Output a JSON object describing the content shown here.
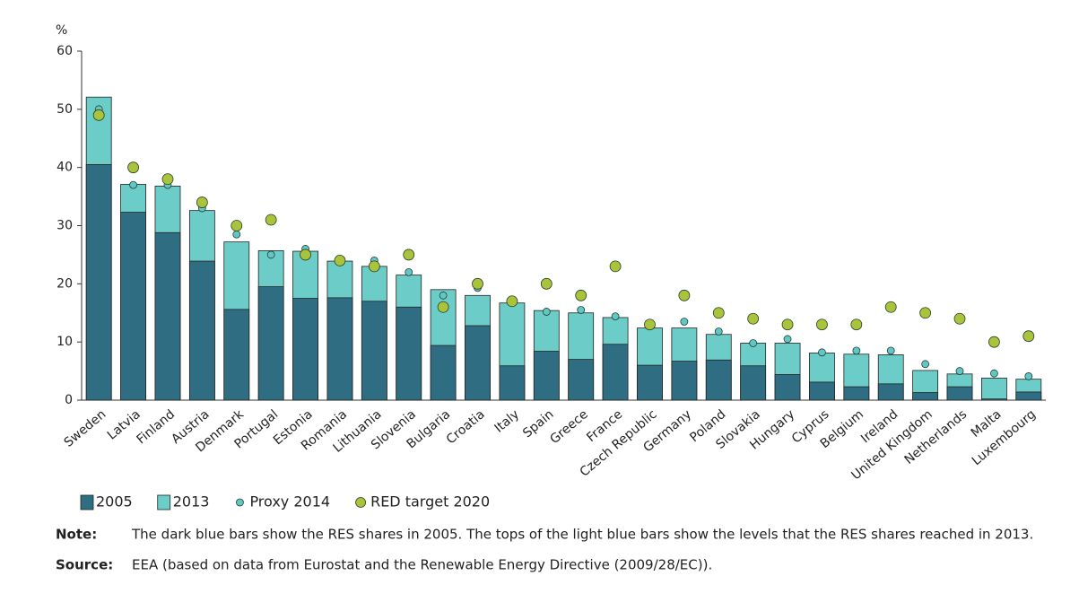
{
  "chart_data": {
    "type": "bar",
    "y_label": "%",
    "categories": [
      "Sweden",
      "Latvia",
      "Finland",
      "Austria",
      "Denmark",
      "Portugal",
      "Estonia",
      "Romania",
      "Lithuania",
      "Slovenia",
      "Bulgaria",
      "Croatia",
      "Italy",
      "Spain",
      "Greece",
      "France",
      "Czech Republic",
      "Germany",
      "Poland",
      "Slovakia",
      "Hungary",
      "Cyprus",
      "Belgium",
      "Ireland",
      "United Kingdom",
      "Netherlands",
      "Malta",
      "Luxembourg"
    ],
    "series": [
      {
        "name": "2013",
        "mark": "bar",
        "color": "#6ccdc8",
        "values": [
          52.1,
          37.1,
          36.8,
          32.6,
          27.2,
          25.7,
          25.6,
          23.9,
          23.0,
          21.5,
          19.0,
          18.0,
          16.7,
          15.4,
          15.0,
          14.2,
          12.4,
          12.4,
          11.3,
          9.8,
          9.8,
          8.1,
          7.9,
          7.8,
          5.1,
          4.5,
          3.8,
          3.6
        ]
      },
      {
        "name": "2005",
        "mark": "bar",
        "color": "#2f6e82",
        "values": [
          40.5,
          32.3,
          28.8,
          23.9,
          15.6,
          19.5,
          17.5,
          17.6,
          17.0,
          16.0,
          9.4,
          12.8,
          5.9,
          8.4,
          7.0,
          9.6,
          6.0,
          6.7,
          6.9,
          5.9,
          4.4,
          3.1,
          2.3,
          2.8,
          1.3,
          2.3,
          0.2,
          1.4
        ]
      },
      {
        "name": "Proxy 2014",
        "mark": "circle",
        "color": "#5ec8c8",
        "values": [
          50,
          37,
          37,
          33,
          28.5,
          25,
          26,
          24,
          24,
          22,
          18,
          19.3,
          17,
          15.2,
          15.5,
          14.4,
          13,
          13.5,
          11.8,
          9.8,
          10.5,
          8.2,
          8.5,
          8.5,
          6.2,
          5,
          4.6,
          4.1
        ]
      },
      {
        "name": "RED target 2020",
        "mark": "circle",
        "color": "#a9c43b",
        "values": [
          49,
          40,
          38,
          34,
          30,
          31,
          25,
          24,
          23,
          25,
          16,
          20,
          17,
          20,
          18,
          23,
          13,
          18,
          15,
          14,
          13,
          13,
          13,
          16,
          15,
          14,
          10,
          11
        ]
      }
    ],
    "legend_order": [
      1,
      0,
      2,
      3
    ],
    "ylim": [
      0,
      60
    ],
    "yticks": [
      0,
      10,
      20,
      30,
      40,
      50,
      60
    ],
    "notes": [
      {
        "label": "Note:",
        "text": "The dark blue bars show the RES shares in 2005. The tops of the light blue bars show the levels that the RES shares reached in 2013."
      },
      {
        "label": "Source:",
        "text": "EEA (based on data from Eurostat and the Renewable Energy Directive (2009/28/EC))."
      }
    ]
  }
}
